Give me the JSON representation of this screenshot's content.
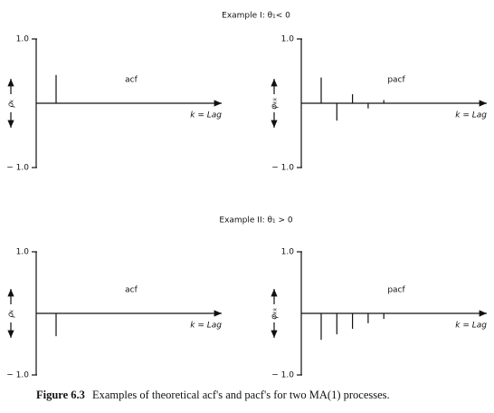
{
  "headings": [
    "Example I: θ₁< 0",
    "Example II: θ₁ > 0"
  ],
  "caption": {
    "label": "Figure 6.3",
    "text": "Examples of theoretical acf's and pacf's for two MA(1) processes."
  },
  "chart_data": [
    {
      "type": "bar",
      "title": "acf",
      "ylabel": "ρₖ",
      "xlabel": "k = Lag",
      "x": [
        1
      ],
      "values": [
        0.44
      ],
      "ylim": [
        -1,
        1
      ],
      "yticks": [
        {
          "value": 1,
          "label": "1.0"
        },
        {
          "value": -1,
          "label": "− 1.0"
        }
      ]
    },
    {
      "type": "bar",
      "title": "pacf",
      "ylabel": "φₖₖ",
      "xlabel": "k = Lag",
      "x": [
        1,
        2,
        3,
        4,
        5
      ],
      "values": [
        0.4,
        -0.27,
        0.14,
        -0.08,
        0.05
      ],
      "ylim": [
        -1,
        1
      ],
      "yticks": [
        {
          "value": 1,
          "label": "1.0"
        },
        {
          "value": -1,
          "label": "− 1.0"
        }
      ]
    },
    {
      "type": "bar",
      "title": "acf",
      "ylabel": "ρₖ",
      "xlabel": "k = Lag",
      "x": [
        1
      ],
      "values": [
        -0.37
      ],
      "ylim": [
        -1,
        1
      ],
      "yticks": [
        {
          "value": 1,
          "label": "1.0"
        },
        {
          "value": -1,
          "label": "− 1.0"
        }
      ]
    },
    {
      "type": "bar",
      "title": "pacf",
      "ylabel": "φₖₖ",
      "xlabel": "k = Lag",
      "x": [
        1,
        2,
        3,
        4,
        5
      ],
      "values": [
        -0.43,
        -0.34,
        -0.25,
        -0.16,
        -0.09
      ],
      "ylim": [
        -1,
        1
      ],
      "yticks": [
        {
          "value": 1,
          "label": "1.0"
        },
        {
          "value": -1,
          "label": "− 1.0"
        }
      ]
    }
  ]
}
